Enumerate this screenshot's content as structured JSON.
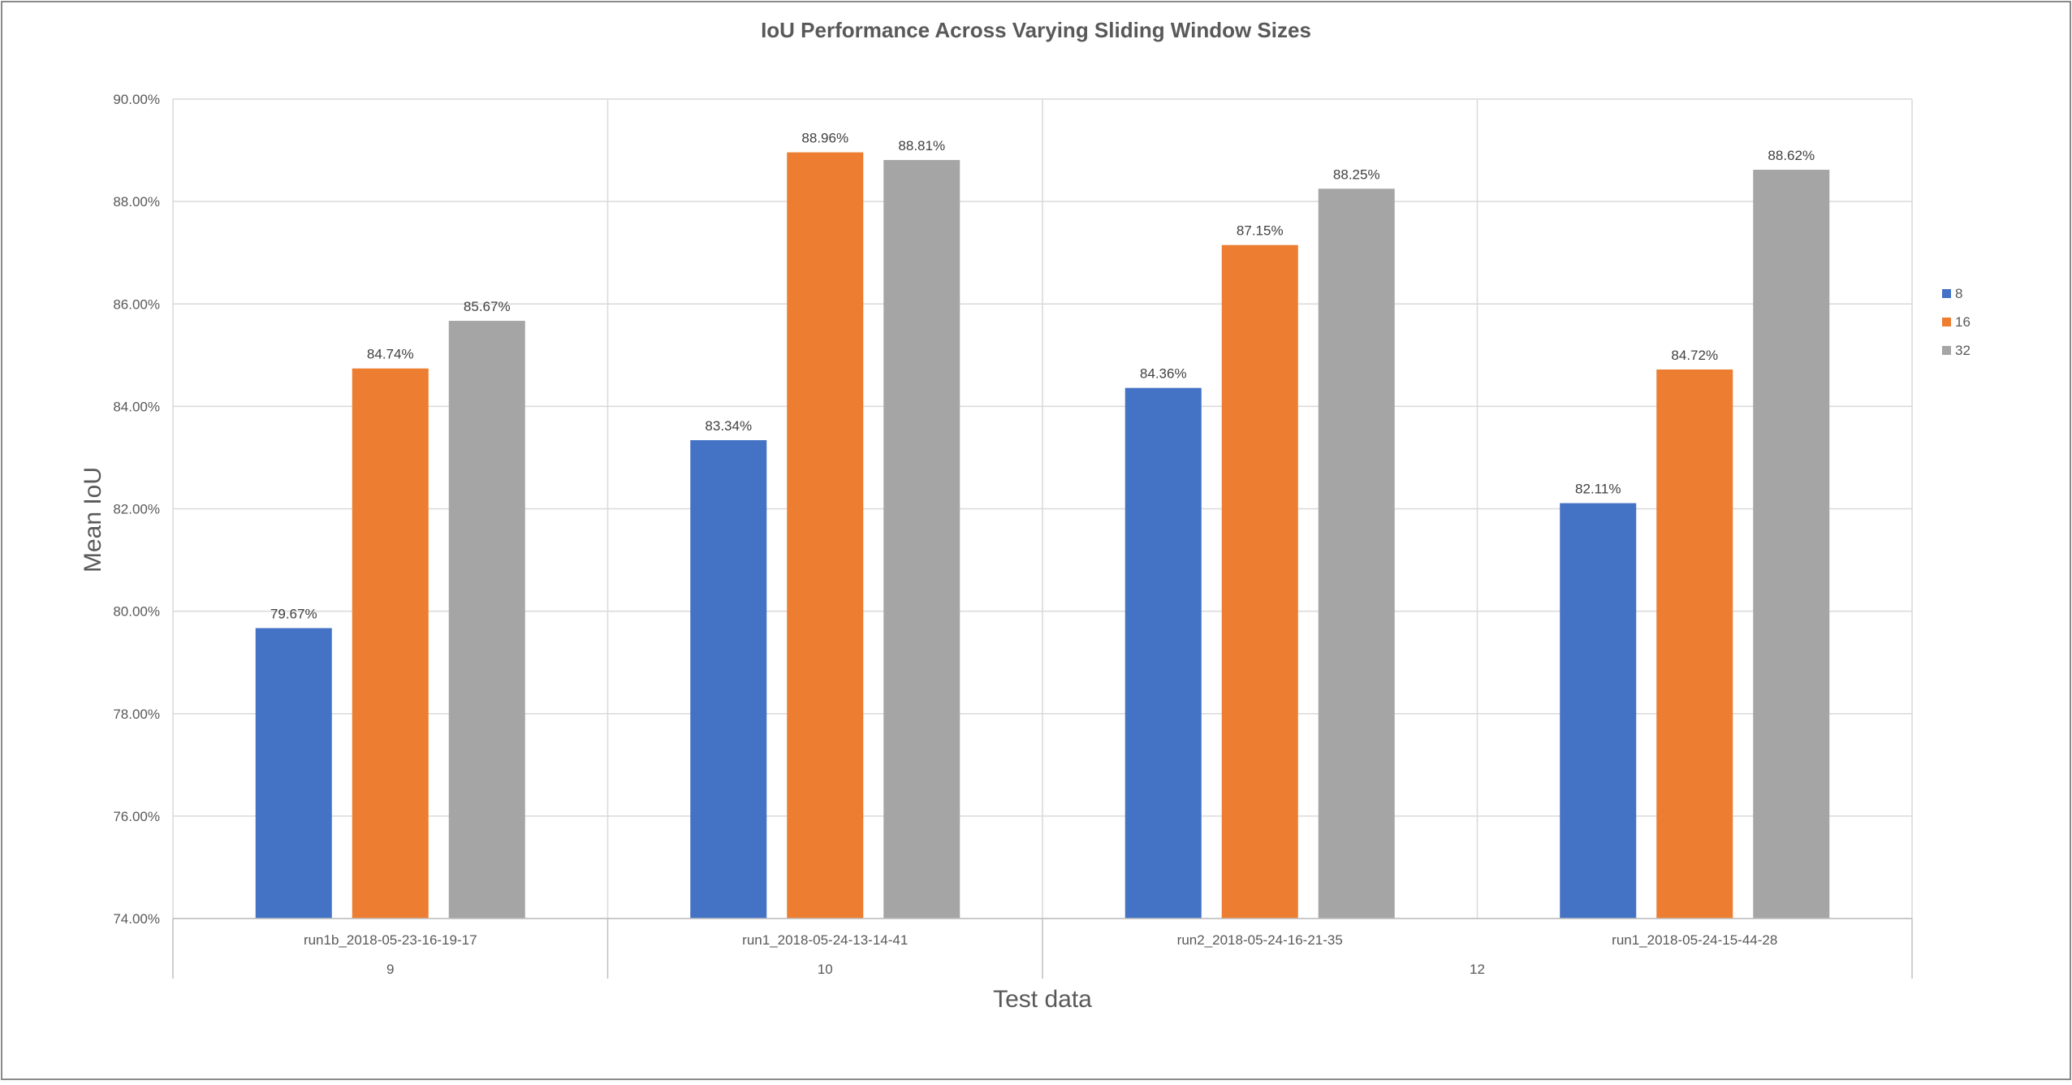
{
  "chart_data": {
    "type": "bar",
    "title": "IoU Performance Across Varying Sliding Window Sizes",
    "xlabel": "Test data",
    "ylabel": "Mean IoU",
    "ylim": [
      74,
      90
    ],
    "ytick_step": 2,
    "ytick_labels": [
      "74.00%",
      "76.00%",
      "78.00%",
      "80.00%",
      "82.00%",
      "84.00%",
      "86.00%",
      "88.00%",
      "90.00%"
    ],
    "categories": [
      "run1b_2018-05-23-16-19-17",
      "run1_2018-05-24-13-14-41",
      "run2_2018-05-24-16-21-35",
      "run1_2018-05-24-15-44-28"
    ],
    "group_labels": [
      {
        "label": "9",
        "span": [
          0,
          0
        ]
      },
      {
        "label": "10",
        "span": [
          1,
          1
        ]
      },
      {
        "label": "12",
        "span": [
          2,
          3
        ]
      }
    ],
    "series": [
      {
        "name": "8",
        "color": "#4472C4",
        "values": [
          79.67,
          83.34,
          84.36,
          82.11
        ],
        "labels": [
          "79.67%",
          "83.34%",
          "84.36%",
          "82.11%"
        ]
      },
      {
        "name": "16",
        "color": "#ED7D31",
        "values": [
          84.74,
          88.96,
          87.15,
          84.72
        ],
        "labels": [
          "84.74%",
          "88.96%",
          "87.15%",
          "84.72%"
        ]
      },
      {
        "name": "32",
        "color": "#A5A5A5",
        "values": [
          85.67,
          88.81,
          88.25,
          88.62
        ],
        "labels": [
          "85.67%",
          "88.81%",
          "88.25%",
          "88.62%"
        ]
      }
    ],
    "grid": true,
    "legend_position": "right"
  }
}
